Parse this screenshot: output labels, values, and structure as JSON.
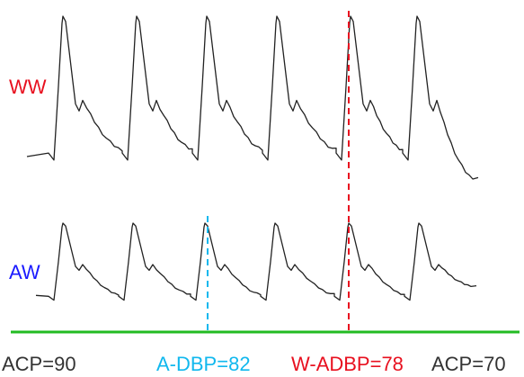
{
  "chart_data": {
    "type": "line",
    "series": [
      {
        "name": "WW",
        "color": "#e8101f",
        "beat_peak_times": [
          70,
          152,
          230,
          308,
          390,
          464
        ],
        "baseline_before_beat": 0.18,
        "start_level": 0.2,
        "end_level": 0.08
      },
      {
        "name": "AW",
        "color": "#1a1aff",
        "beat_peak_times": [
          70,
          148,
          228,
          306,
          388,
          466
        ],
        "baseline_before_beat": 0.2,
        "start_level": 0.25,
        "end_level": 0.35
      }
    ],
    "markers": [
      {
        "label": "A-DBP=82",
        "color": "#11b8ee",
        "series": "AW",
        "time": 231
      },
      {
        "label": "W-ADBP=78",
        "color": "#e8101f",
        "series": "WW",
        "time": 388
      }
    ],
    "annotations": {
      "left": "ACP=90",
      "right": "ACP=70"
    },
    "baseline_color": "#22bb22",
    "trace_color": "#222222"
  }
}
